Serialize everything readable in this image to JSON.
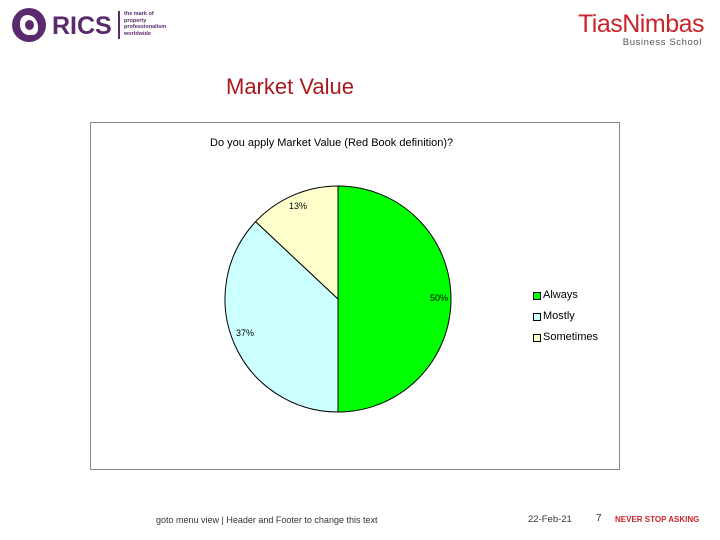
{
  "header": {
    "rics_logo": {
      "word": "RICS",
      "tagline": [
        "the mark of",
        "property",
        "professionalism",
        "worldwide"
      ]
    },
    "tias_logo": {
      "word": "TiasNimbas",
      "subtitle": "Business School"
    }
  },
  "slide_title": "Market Value",
  "chart_data": {
    "type": "pie",
    "title": "Do you apply Market Value (Red Book definition)?",
    "slices": [
      {
        "name": "Always",
        "value": 50,
        "label": "50%",
        "color": "#00ff00"
      },
      {
        "name": "Mostly",
        "value": 37,
        "label": "37%",
        "color": "#ccffff"
      },
      {
        "name": "Sometimes",
        "value": 13,
        "label": "13%",
        "color": "#ffffcc"
      }
    ],
    "legend_position": "right"
  },
  "footer": {
    "note": "goto menu view | Header and Footer to change this text",
    "date": "22-Feb-21",
    "page": "7",
    "slogan": "NEVER STOP ASKING"
  }
}
